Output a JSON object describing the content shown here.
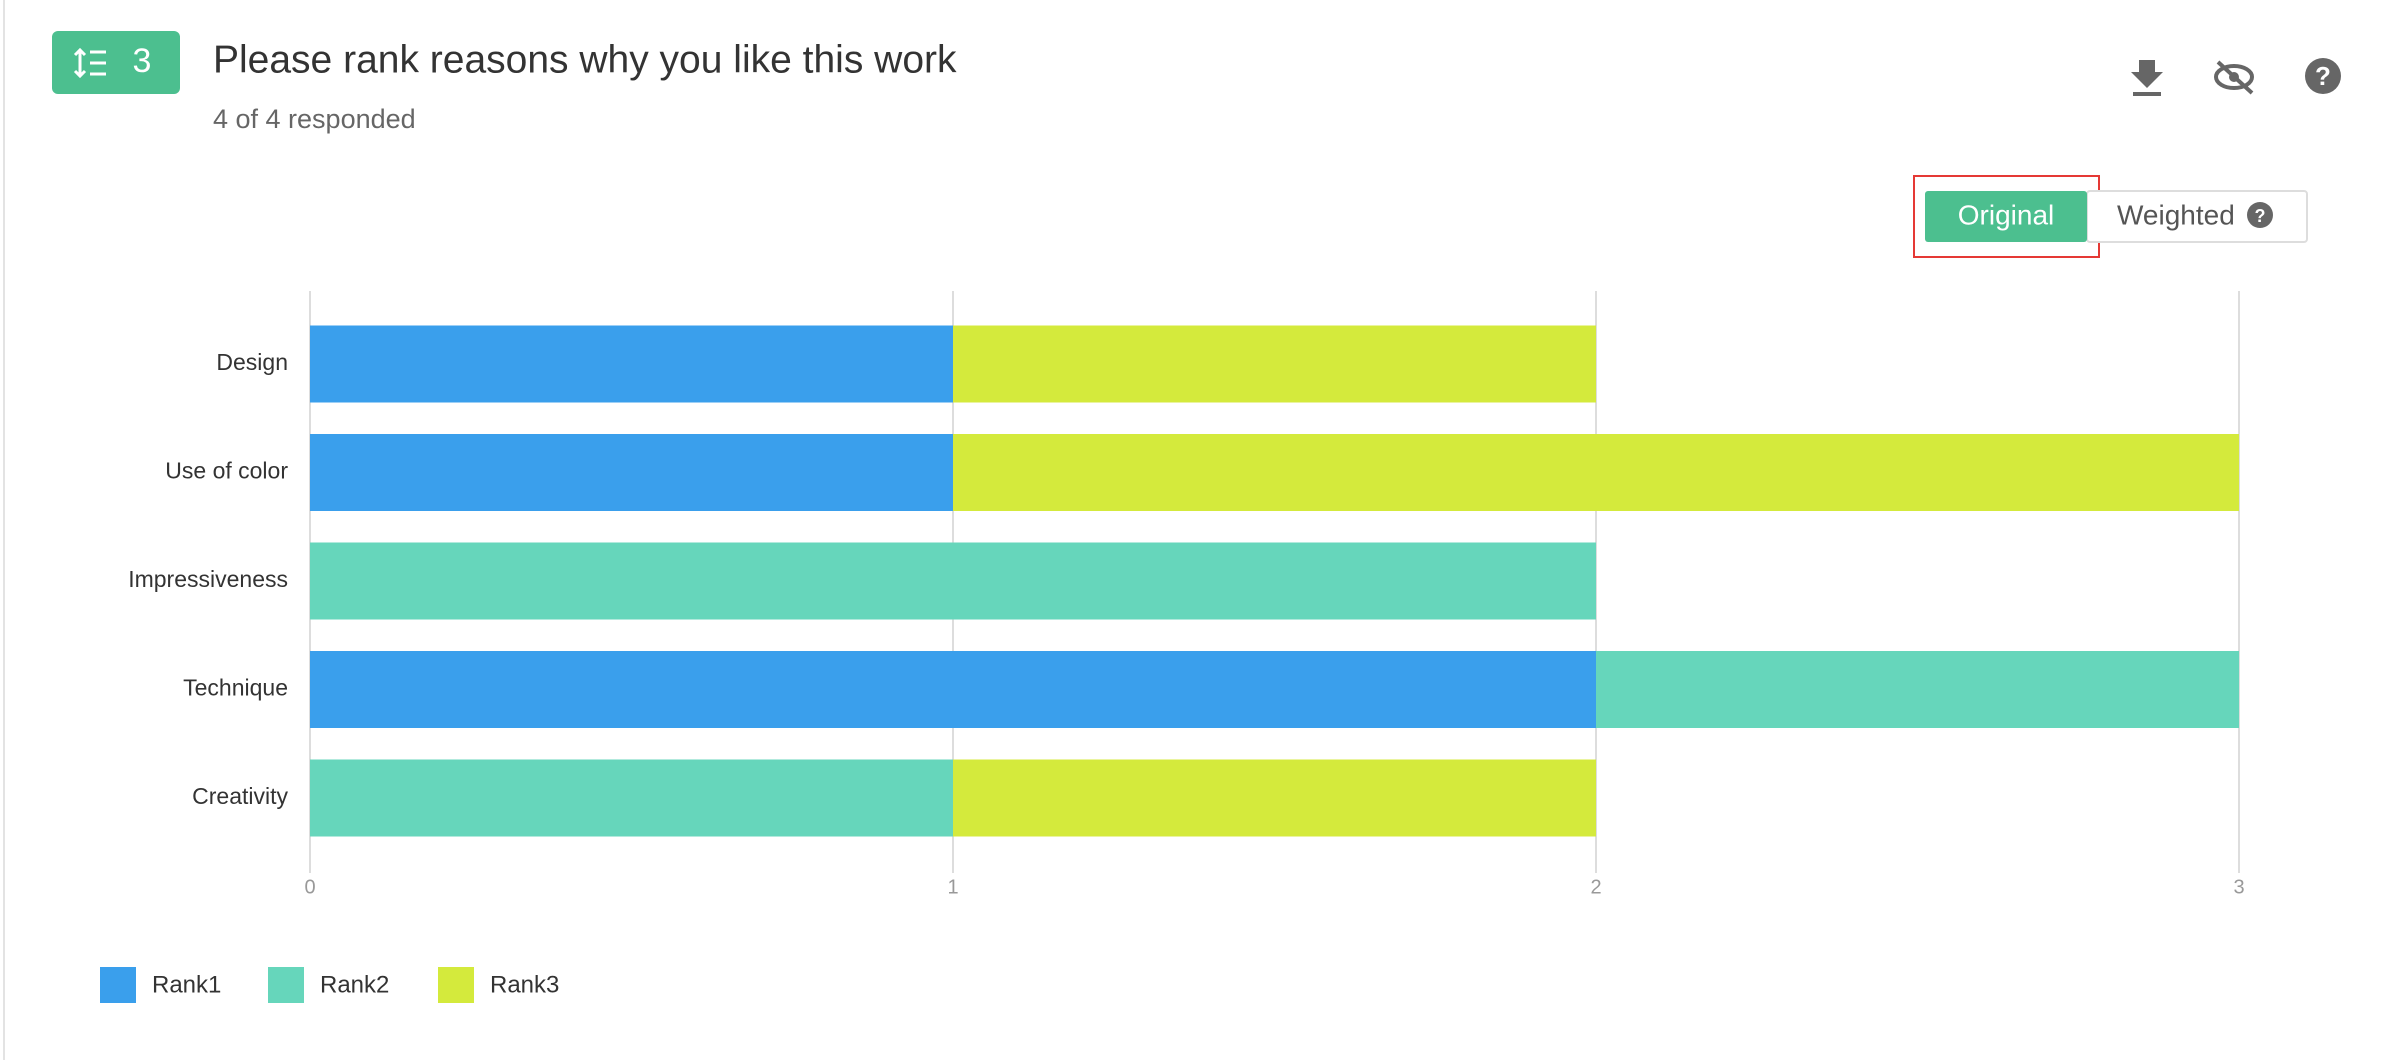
{
  "question": {
    "number": "3",
    "title": "Please rank reasons why you like this work",
    "subtitle": "4 of 4 responded"
  },
  "toggle": {
    "original": "Original",
    "weighted": "Weighted"
  },
  "chart_data": {
    "type": "stacked-barh",
    "categories": [
      "Design",
      "Use of color",
      "Impressiveness",
      "Technique",
      "Creativity"
    ],
    "series": [
      {
        "name": "Rank1",
        "color": "#3a9fec",
        "values": [
          1,
          1,
          0,
          2,
          0
        ]
      },
      {
        "name": "Rank2",
        "color": "#66d6bb",
        "values": [
          0,
          0,
          2,
          1,
          1
        ]
      },
      {
        "name": "Rank3",
        "color": "#d4ea3c",
        "values": [
          1,
          2,
          0,
          0,
          1
        ]
      }
    ],
    "xlim": [
      0,
      3
    ],
    "xticks": [
      0,
      1,
      2,
      3
    ],
    "grid": true,
    "legend": "bottom-left"
  }
}
